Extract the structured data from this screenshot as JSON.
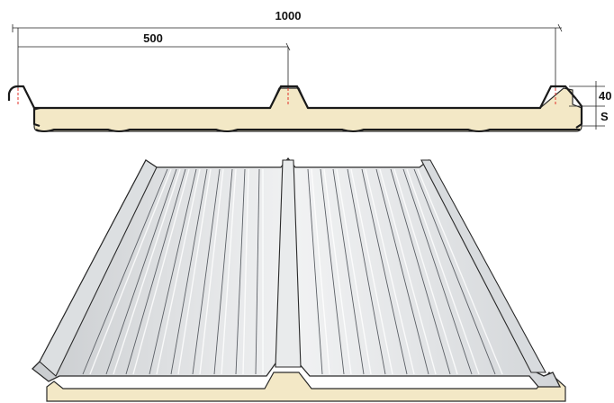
{
  "dimensions": {
    "total_width_label": "1000",
    "half_width_label": "500",
    "rib_height_label": "40",
    "thickness_label": "S"
  },
  "colors": {
    "foam_core": "#f3e8c6",
    "steel_sheet": "#e6e7e8",
    "axis_dash": "#e0302a",
    "outline": "#1a1a1a"
  }
}
